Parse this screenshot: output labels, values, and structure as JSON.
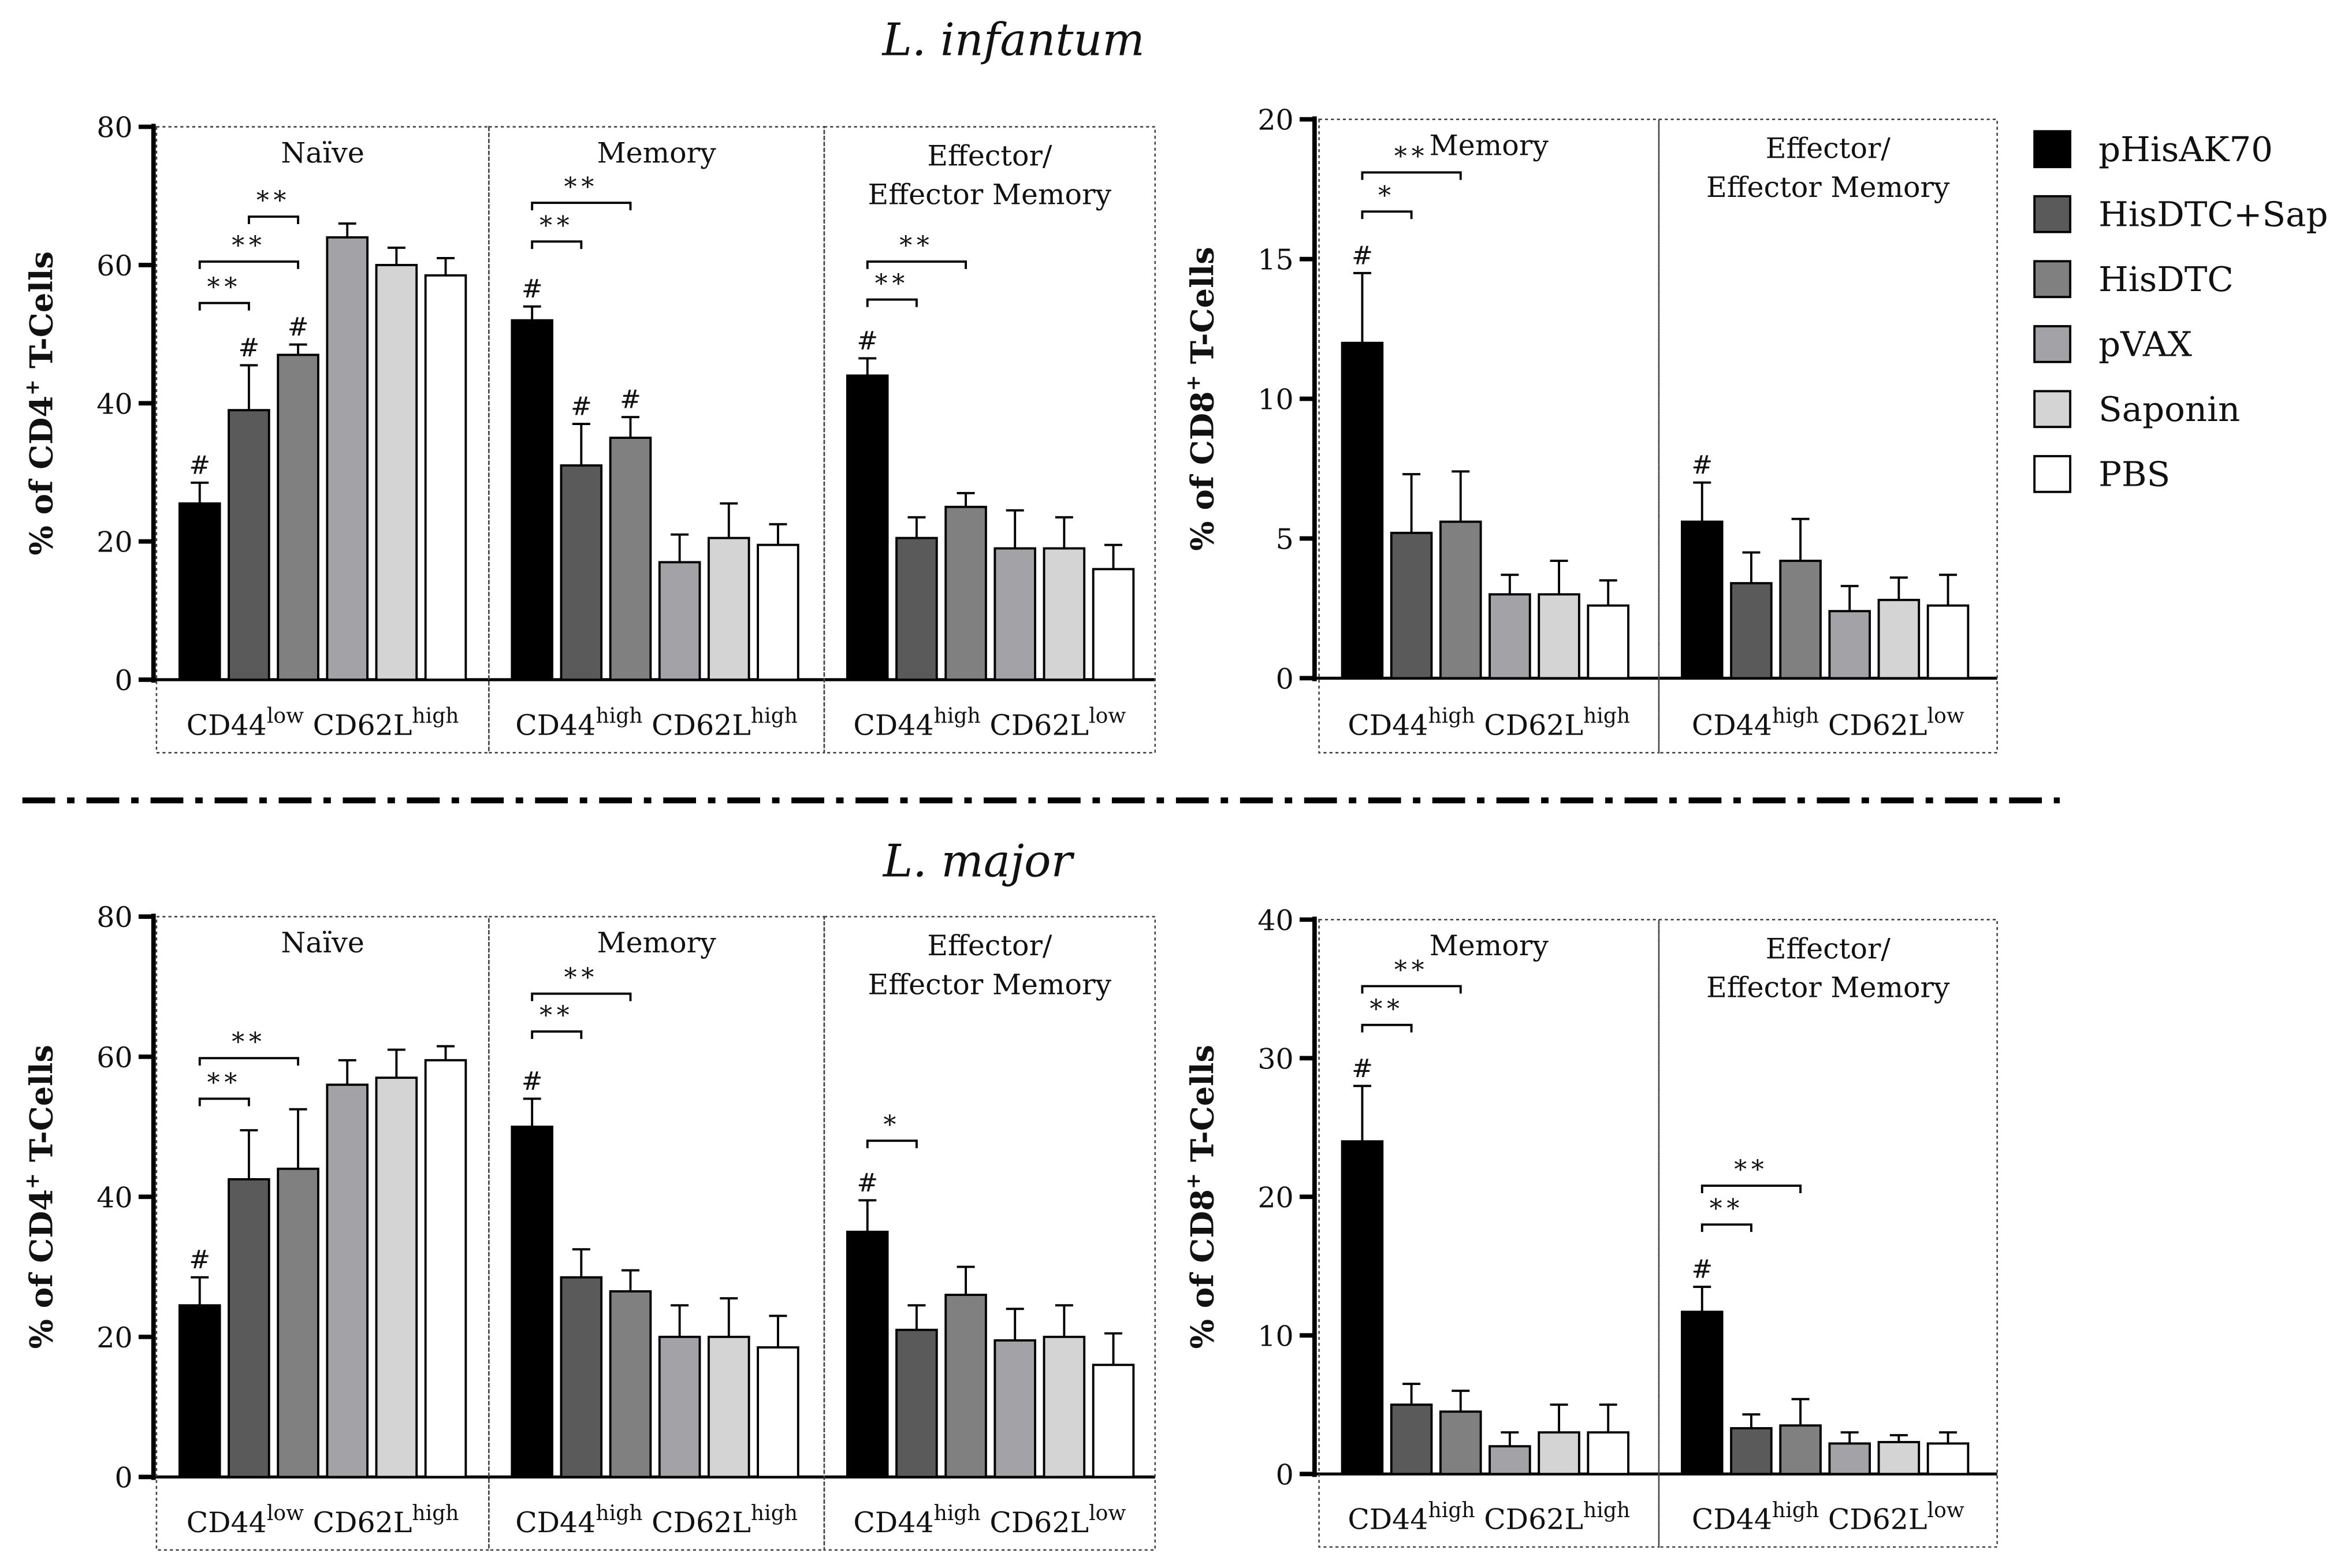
{
  "titles": {
    "top": "L. infantum",
    "bottom": "L. major"
  },
  "legend": [
    {
      "label": "pHisAK70",
      "color": "#000000"
    },
    {
      "label": "HisDTC+Sap",
      "color": "#5a5a5a"
    },
    {
      "label": "HisDTC",
      "color": "#808080"
    },
    {
      "label": "pVAX",
      "color": "#a2a2a7"
    },
    {
      "label": "Saponin",
      "color": "#d4d4d4"
    },
    {
      "label": "PBS",
      "color": "#ffffff"
    }
  ],
  "chart_data": [
    {
      "type": "bar",
      "title": "L. infantum CD4",
      "ylabel": "% of CD4+ T-Cells",
      "ylabel_main": "% of CD4",
      "ylabel_sup": "+",
      "ylabel_end": " T-Cells",
      "ylim": [
        0,
        80
      ],
      "yticks": [
        0,
        20,
        40,
        60,
        80
      ],
      "groups": [
        {
          "name": "Naïve",
          "cd44_sup": "low",
          "cd62l_sup": "high",
          "values": [
            25.5,
            39,
            47,
            64,
            60,
            58.5
          ],
          "errors": [
            3,
            6.5,
            1.5,
            2,
            2.5,
            2.5
          ],
          "hash": [
            0,
            1,
            2
          ],
          "sig": [
            [
              0,
              1,
              54.5,
              "**"
            ],
            [
              0,
              2,
              60.5,
              "**"
            ],
            [
              1,
              2,
              67,
              "**"
            ]
          ]
        },
        {
          "name": "Memory",
          "cd44_sup": "high",
          "cd62l_sup": "high",
          "values": [
            52,
            31,
            35,
            17,
            20.5,
            19.5
          ],
          "errors": [
            2,
            6,
            3,
            4,
            5,
            3
          ],
          "hash": [
            0,
            1,
            2
          ],
          "sig": [
            [
              0,
              1,
              63.4,
              "**"
            ],
            [
              0,
              2,
              69,
              "**"
            ]
          ]
        },
        {
          "name": "Effector/ Effector Memory",
          "cd44_sup": "high",
          "cd62l_sup": "low",
          "values": [
            44,
            20.5,
            25,
            19,
            19,
            16
          ],
          "errors": [
            2.5,
            3,
            2,
            5.5,
            4.5,
            3.5
          ],
          "hash": [
            0
          ],
          "sig": [
            [
              0,
              1,
              55,
              "**"
            ],
            [
              0,
              2,
              60.5,
              "**"
            ]
          ]
        }
      ]
    },
    {
      "type": "bar",
      "title": "L. infantum CD8",
      "ylabel": "% of CD8+ T-Cells",
      "ylabel_main": "% of CD8",
      "ylabel_sup": "+",
      "ylabel_end": " T-Cells",
      "ylim": [
        0,
        20
      ],
      "yticks": [
        0,
        5,
        10,
        15,
        20
      ],
      "groups": [
        {
          "name": "Memory",
          "cd44_sup": "high",
          "cd62l_sup": "high",
          "values": [
            12,
            5.2,
            5.6,
            3,
            3,
            2.6
          ],
          "errors": [
            2.5,
            2.1,
            1.8,
            0.7,
            1.2,
            0.9
          ],
          "hash": [
            0
          ],
          "sig": [
            [
              0,
              1,
              16.7,
              "*"
            ],
            [
              0,
              2,
              18.1,
              "**"
            ]
          ]
        },
        {
          "name": "Effector/ Effector Memory",
          "cd44_sup": "high",
          "cd62l_sup": "low",
          "values": [
            5.6,
            3.4,
            4.2,
            2.4,
            2.8,
            2.6
          ],
          "errors": [
            1.4,
            1.1,
            1.5,
            0.9,
            0.8,
            1.1
          ],
          "hash": [
            0
          ],
          "sig": []
        }
      ]
    },
    {
      "type": "bar",
      "title": "L. major CD4",
      "ylabel": "% of CD4+ T-Cells",
      "ylabel_main": "% of CD4",
      "ylabel_sup": "+",
      "ylabel_end": " T-Cells",
      "ylim": [
        0,
        80
      ],
      "yticks": [
        0,
        20,
        40,
        60,
        80
      ],
      "groups": [
        {
          "name": "Naïve",
          "cd44_sup": "low",
          "cd62l_sup": "high",
          "values": [
            24.5,
            42.5,
            44,
            56,
            57,
            59.5
          ],
          "errors": [
            4,
            7,
            8.5,
            3.5,
            4,
            2
          ],
          "hash": [
            0
          ],
          "sig": [
            [
              0,
              1,
              54,
              "**"
            ],
            [
              0,
              2,
              59.8,
              "**"
            ]
          ]
        },
        {
          "name": "Memory",
          "cd44_sup": "high",
          "cd62l_sup": "high",
          "values": [
            50,
            28.5,
            26.5,
            20,
            20,
            18.5
          ],
          "errors": [
            4,
            4,
            3,
            4.5,
            5.5,
            4.5
          ],
          "hash": [
            0
          ],
          "sig": [
            [
              0,
              1,
              63.6,
              "**"
            ],
            [
              0,
              2,
              69,
              "**"
            ]
          ]
        },
        {
          "name": "Effector/ Effector Memory",
          "cd44_sup": "high",
          "cd62l_sup": "low",
          "values": [
            35,
            21,
            26,
            19.5,
            20,
            16
          ],
          "errors": [
            4.5,
            3.5,
            4,
            4.5,
            4.5,
            4.5
          ],
          "hash": [
            0
          ],
          "sig": [
            [
              0,
              1,
              48,
              "*"
            ]
          ]
        }
      ]
    },
    {
      "type": "bar",
      "title": "L. major CD8",
      "ylabel": "% of CD8+ T-Cells",
      "ylabel_main": "% of CD8",
      "ylabel_sup": "+",
      "ylabel_end": " T-Cells",
      "ylim": [
        0,
        40
      ],
      "yticks": [
        0,
        10,
        20,
        30,
        40
      ],
      "groups": [
        {
          "name": "Memory",
          "cd44_sup": "high",
          "cd62l_sup": "high",
          "values": [
            24,
            5,
            4.5,
            2,
            3,
            3
          ],
          "errors": [
            4,
            1.5,
            1.5,
            1,
            2,
            2
          ],
          "hash": [
            0
          ],
          "sig": [
            [
              0,
              1,
              32.4,
              "**"
            ],
            [
              0,
              2,
              35.2,
              "**"
            ]
          ]
        },
        {
          "name": "Effector/ Effector Memory",
          "cd44_sup": "high",
          "cd62l_sup": "low",
          "values": [
            11.7,
            3.3,
            3.5,
            2.2,
            2.3,
            2.2
          ],
          "errors": [
            1.8,
            1,
            1.9,
            0.8,
            0.5,
            0.8
          ],
          "hash": [
            0
          ],
          "sig": [
            [
              0,
              1,
              18,
              "**"
            ],
            [
              0,
              2,
              20.8,
              "**"
            ]
          ]
        }
      ]
    }
  ],
  "labels": {
    "cd44": "CD44",
    "cd62l": "CD62L",
    "hash": "#"
  }
}
